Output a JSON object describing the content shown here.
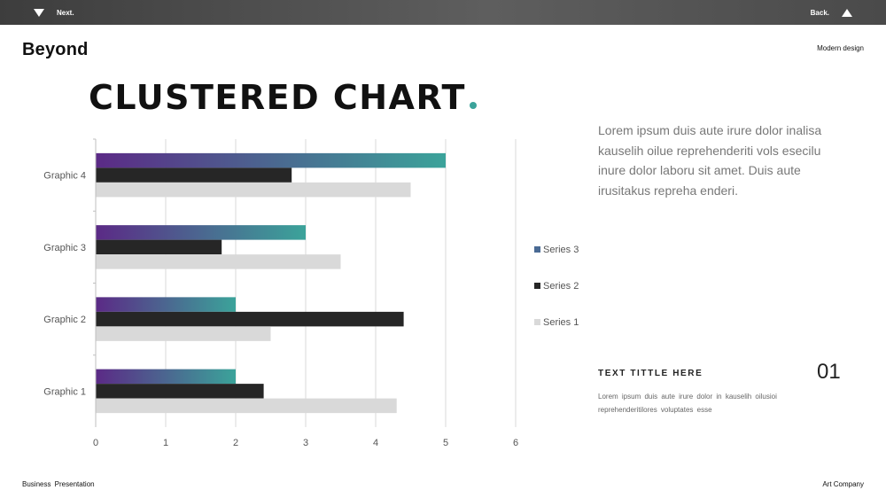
{
  "topbar": {
    "next_label": "Next.",
    "back_label": "Back."
  },
  "brand": "Beyond",
  "tagline": "Modern design",
  "title": "CLUSTERED CHART",
  "accent_color": "#3ba39a",
  "description": "Lorem  ipsum duis aute irure dolor inalisa kauselih oilue reprehenderiti vols esecilu inure dolor laboru sit amet. Duis aute irusitakus repreha enderi.",
  "subsection": {
    "title": "TEXT TITTLE HERE",
    "number": "01",
    "text": "Lorem ipsum duis aute irure dolor in kauselih oilusioi reprehenderitilores voluptates esse"
  },
  "footer": {
    "left": "Business Presentation",
    "right": "Art Company"
  },
  "chart_data": {
    "type": "bar",
    "orientation": "horizontal",
    "categories": [
      "Graphic 1",
      "Graphic 2",
      "Graphic 3",
      "Graphic 4"
    ],
    "series": [
      {
        "name": "Series 3",
        "values": [
          2,
          2,
          3,
          5
        ],
        "color": "gradient #5b2a86 to #3ba39a"
      },
      {
        "name": "Series 2",
        "values": [
          2.4,
          4.4,
          1.8,
          2.8
        ],
        "color": "#262626"
      },
      {
        "name": "Series 1",
        "values": [
          4.3,
          2.5,
          3.5,
          4.5
        ],
        "color": "#d9d9d9"
      }
    ],
    "xlim": [
      0,
      6
    ],
    "xticks": [
      "0",
      "1",
      "2",
      "3",
      "4",
      "5",
      "6"
    ],
    "grid": true,
    "legend_position": "right",
    "legend_colors": [
      "#4a6a94",
      "#262626",
      "#d9d9d9"
    ]
  }
}
